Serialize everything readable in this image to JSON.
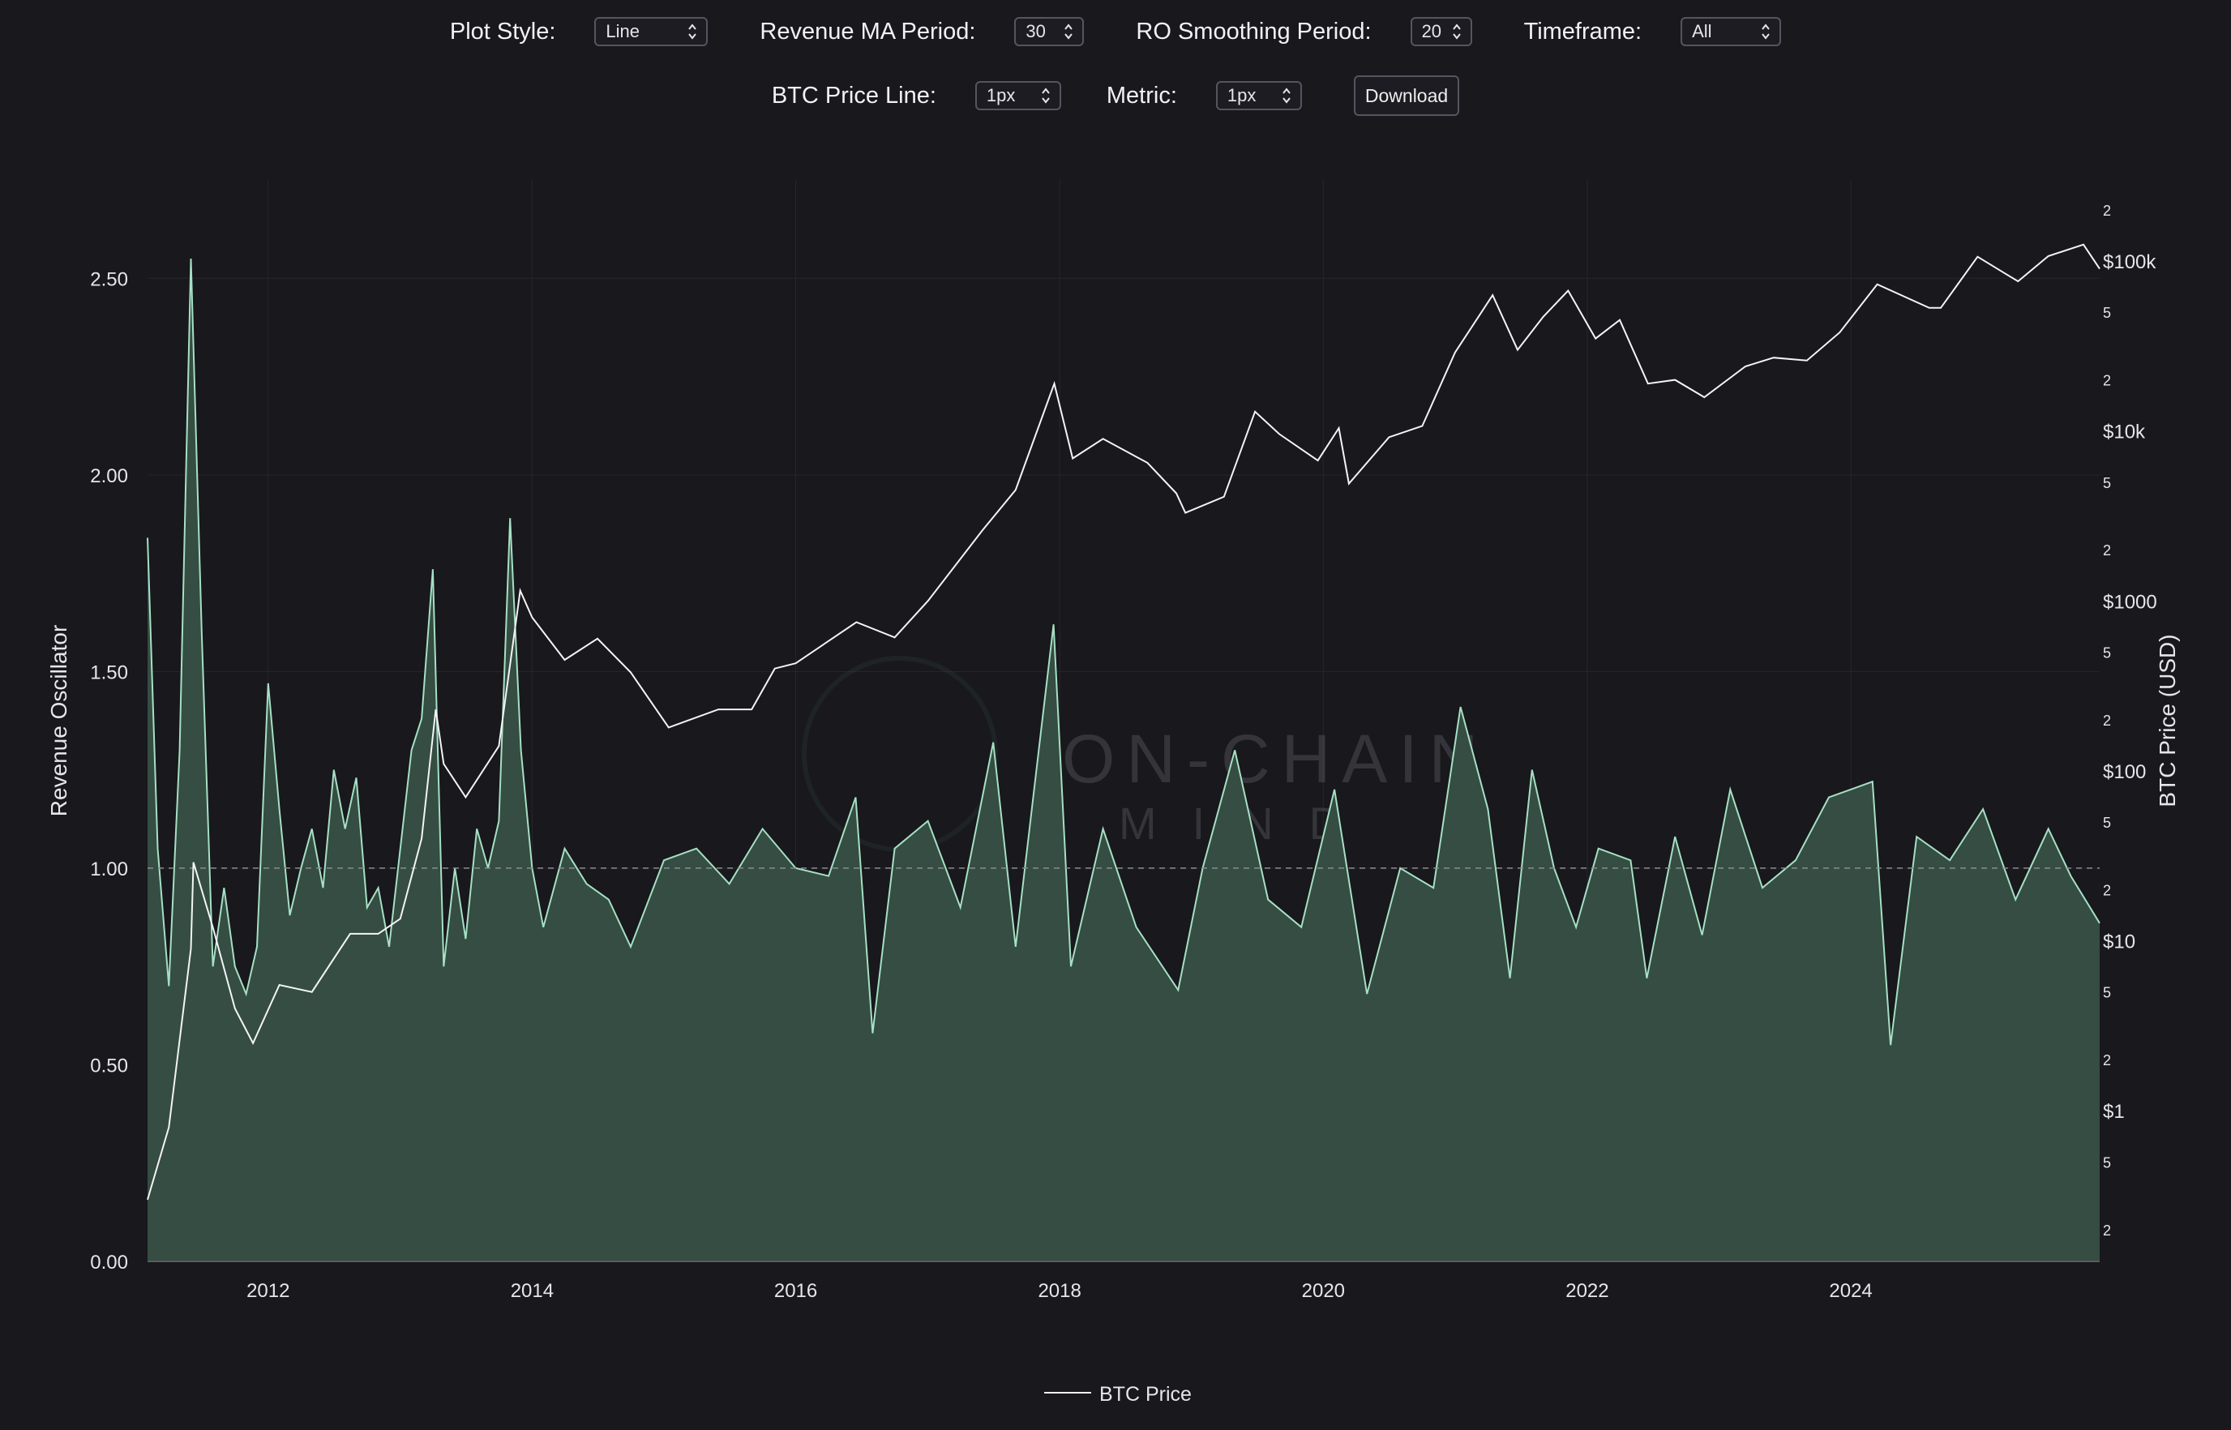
{
  "controls": {
    "plot_style": {
      "label": "Plot Style:",
      "value": "Line"
    },
    "revenue_ma_period": {
      "label": "Revenue MA Period:",
      "value": "30"
    },
    "ro_smoothing_period": {
      "label": "RO Smoothing Period:",
      "value": "20"
    },
    "timeframe": {
      "label": "Timeframe:",
      "value": "All"
    },
    "btc_price_line": {
      "label": "BTC Price Line:",
      "value": "1px"
    },
    "metric": {
      "label": "Metric:",
      "value": "1px"
    },
    "download_label": "Download"
  },
  "watermark": {
    "line1": "ON-CHAIN",
    "line2": "MIND"
  },
  "colors": {
    "background": "#18181d",
    "price_line": "#f4f4f6",
    "oscillator_line": "#a6e0c4",
    "oscillator_fill": "#354d42",
    "reference_line": "#8c8c94"
  },
  "chart_data": {
    "type": "line",
    "xlabel": "",
    "x_ticks": [
      "2012",
      "2014",
      "2016",
      "2018",
      "2020",
      "2022",
      "2024"
    ],
    "x_range": [
      "2011-02-01",
      "2025-11-20"
    ],
    "y_left": {
      "label": "Revenue Oscillator",
      "range": [
        0,
        2.75
      ],
      "ticks": [
        "0.00",
        "0.50",
        "1.00",
        "1.50",
        "2.00",
        "2.50"
      ]
    },
    "y_right": {
      "label": "BTC Price (USD)",
      "scale": "log",
      "range": [
        0.13,
        300000
      ],
      "major_ticks": [
        "$1",
        "$10",
        "$100",
        "$1000",
        "$10k",
        "$100k"
      ],
      "minor_ticks": [
        "2",
        "5"
      ]
    },
    "reference_line": 1.0,
    "legend": {
      "position": "bottom-center",
      "entries": [
        "BTC Price"
      ]
    },
    "series": [
      {
        "name": "BTC Price",
        "axis": "right",
        "points": [
          [
            "2011-02-01",
            0.3
          ],
          [
            "2011-04-01",
            0.8
          ],
          [
            "2011-06-01",
            9
          ],
          [
            "2011-06-08",
            29
          ],
          [
            "2011-08-01",
            12
          ],
          [
            "2011-10-01",
            4
          ],
          [
            "2011-11-20",
            2.5
          ],
          [
            "2012-02-01",
            5.5
          ],
          [
            "2012-05-01",
            5
          ],
          [
            "2012-08-15",
            11
          ],
          [
            "2012-11-01",
            11
          ],
          [
            "2013-01-01",
            13.5
          ],
          [
            "2013-03-01",
            40
          ],
          [
            "2013-04-09",
            230
          ],
          [
            "2013-05-01",
            110
          ],
          [
            "2013-07-01",
            70
          ],
          [
            "2013-10-01",
            140
          ],
          [
            "2013-11-29",
            1150
          ],
          [
            "2014-01-01",
            800
          ],
          [
            "2014-04-01",
            450
          ],
          [
            "2014-07-01",
            600
          ],
          [
            "2014-10-01",
            380
          ],
          [
            "2015-01-14",
            180
          ],
          [
            "2015-06-01",
            230
          ],
          [
            "2015-09-01",
            230
          ],
          [
            "2015-11-04",
            400
          ],
          [
            "2016-01-01",
            430
          ],
          [
            "2016-06-17",
            750
          ],
          [
            "2016-10-01",
            610
          ],
          [
            "2017-01-01",
            1000
          ],
          [
            "2017-06-01",
            2600
          ],
          [
            "2017-09-01",
            4500
          ],
          [
            "2017-12-17",
            19000
          ],
          [
            "2018-02-06",
            6900
          ],
          [
            "2018-05-01",
            9000
          ],
          [
            "2018-09-01",
            6500
          ],
          [
            "2018-11-20",
            4300
          ],
          [
            "2018-12-15",
            3300
          ],
          [
            "2019-04-01",
            4100
          ],
          [
            "2019-06-26",
            13000
          ],
          [
            "2019-09-01",
            9600
          ],
          [
            "2019-12-17",
            6700
          ],
          [
            "2020-02-13",
            10400
          ],
          [
            "2020-03-12",
            4900
          ],
          [
            "2020-07-01",
            9200
          ],
          [
            "2020-10-01",
            10700
          ],
          [
            "2020-12-31",
            29000
          ],
          [
            "2021-04-14",
            63000
          ],
          [
            "2021-06-22",
            30000
          ],
          [
            "2021-09-01",
            47000
          ],
          [
            "2021-11-09",
            67000
          ],
          [
            "2022-01-24",
            35000
          ],
          [
            "2022-04-01",
            45000
          ],
          [
            "2022-06-18",
            19000
          ],
          [
            "2022-09-01",
            20000
          ],
          [
            "2022-11-21",
            15800
          ],
          [
            "2023-03-15",
            24000
          ],
          [
            "2023-06-01",
            27000
          ],
          [
            "2023-09-01",
            26000
          ],
          [
            "2023-12-01",
            38000
          ],
          [
            "2024-03-14",
            73000
          ],
          [
            "2024-08-05",
            53000
          ],
          [
            "2024-09-06",
            53000
          ],
          [
            "2024-12-17",
            106000
          ],
          [
            "2025-03-01",
            85000
          ],
          [
            "2025-04-08",
            76000
          ],
          [
            "2025-07-01",
            107000
          ],
          [
            "2025-10-06",
            125000
          ],
          [
            "2025-11-20",
            90000
          ]
        ]
      },
      {
        "name": "Revenue Oscillator",
        "axis": "left",
        "points": [
          [
            "2011-02-01",
            1.84
          ],
          [
            "2011-03-01",
            1.05
          ],
          [
            "2011-04-01",
            0.7
          ],
          [
            "2011-05-01",
            1.3
          ],
          [
            "2011-06-01",
            2.55
          ],
          [
            "2011-07-01",
            1.6
          ],
          [
            "2011-08-01",
            0.75
          ],
          [
            "2011-09-01",
            0.95
          ],
          [
            "2011-10-01",
            0.75
          ],
          [
            "2011-11-01",
            0.68
          ],
          [
            "2011-12-01",
            0.8
          ],
          [
            "2012-01-01",
            1.47
          ],
          [
            "2012-02-01",
            1.15
          ],
          [
            "2012-03-01",
            0.88
          ],
          [
            "2012-04-01",
            1.0
          ],
          [
            "2012-05-01",
            1.1
          ],
          [
            "2012-06-01",
            0.95
          ],
          [
            "2012-07-01",
            1.25
          ],
          [
            "2012-08-01",
            1.1
          ],
          [
            "2012-09-01",
            1.23
          ],
          [
            "2012-10-01",
            0.9
          ],
          [
            "2012-11-01",
            0.95
          ],
          [
            "2012-12-01",
            0.8
          ],
          [
            "2013-01-01",
            1.05
          ],
          [
            "2013-02-01",
            1.3
          ],
          [
            "2013-03-01",
            1.38
          ],
          [
            "2013-04-01",
            1.76
          ],
          [
            "2013-05-01",
            0.75
          ],
          [
            "2013-06-01",
            1.0
          ],
          [
            "2013-07-01",
            0.82
          ],
          [
            "2013-08-01",
            1.1
          ],
          [
            "2013-09-01",
            1.0
          ],
          [
            "2013-10-01",
            1.12
          ],
          [
            "2013-11-01",
            1.89
          ],
          [
            "2013-12-01",
            1.3
          ],
          [
            "2014-01-01",
            1.0
          ],
          [
            "2014-02-01",
            0.85
          ],
          [
            "2014-04-01",
            1.05
          ],
          [
            "2014-06-01",
            0.96
          ],
          [
            "2014-08-01",
            0.92
          ],
          [
            "2014-10-01",
            0.8
          ],
          [
            "2015-01-01",
            1.02
          ],
          [
            "2015-04-01",
            1.05
          ],
          [
            "2015-07-01",
            0.96
          ],
          [
            "2015-10-01",
            1.1
          ],
          [
            "2016-01-01",
            1.0
          ],
          [
            "2016-04-01",
            0.98
          ],
          [
            "2016-06-15",
            1.18
          ],
          [
            "2016-08-01",
            0.58
          ],
          [
            "2016-10-01",
            1.05
          ],
          [
            "2017-01-01",
            1.12
          ],
          [
            "2017-04-01",
            0.9
          ],
          [
            "2017-07-01",
            1.32
          ],
          [
            "2017-09-01",
            0.8
          ],
          [
            "2017-12-15",
            1.62
          ],
          [
            "2018-02-01",
            0.75
          ],
          [
            "2018-05-01",
            1.1
          ],
          [
            "2018-08-01",
            0.85
          ],
          [
            "2018-11-25",
            0.69
          ],
          [
            "2019-02-01",
            1.0
          ],
          [
            "2019-05-01",
            1.3
          ],
          [
            "2019-08-01",
            0.92
          ],
          [
            "2019-11-01",
            0.85
          ],
          [
            "2020-02-01",
            1.2
          ],
          [
            "2020-05-01",
            0.68
          ],
          [
            "2020-08-01",
            1.0
          ],
          [
            "2020-11-01",
            0.95
          ],
          [
            "2021-01-15",
            1.41
          ],
          [
            "2021-04-01",
            1.15
          ],
          [
            "2021-06-01",
            0.72
          ],
          [
            "2021-08-01",
            1.25
          ],
          [
            "2021-10-01",
            1.0
          ],
          [
            "2021-12-01",
            0.85
          ],
          [
            "2022-02-01",
            1.05
          ],
          [
            "2022-05-01",
            1.02
          ],
          [
            "2022-06-15",
            0.72
          ],
          [
            "2022-09-01",
            1.08
          ],
          [
            "2022-11-15",
            0.83
          ],
          [
            "2023-02-01",
            1.2
          ],
          [
            "2023-05-01",
            0.95
          ],
          [
            "2023-08-01",
            1.02
          ],
          [
            "2023-11-01",
            1.18
          ],
          [
            "2024-03-01",
            1.22
          ],
          [
            "2024-04-20",
            0.55
          ],
          [
            "2024-07-01",
            1.08
          ],
          [
            "2024-10-01",
            1.02
          ],
          [
            "2025-01-01",
            1.15
          ],
          [
            "2025-04-01",
            0.92
          ],
          [
            "2025-07-01",
            1.1
          ],
          [
            "2025-09-01",
            0.98
          ],
          [
            "2025-11-20",
            0.86
          ]
        ]
      }
    ]
  }
}
